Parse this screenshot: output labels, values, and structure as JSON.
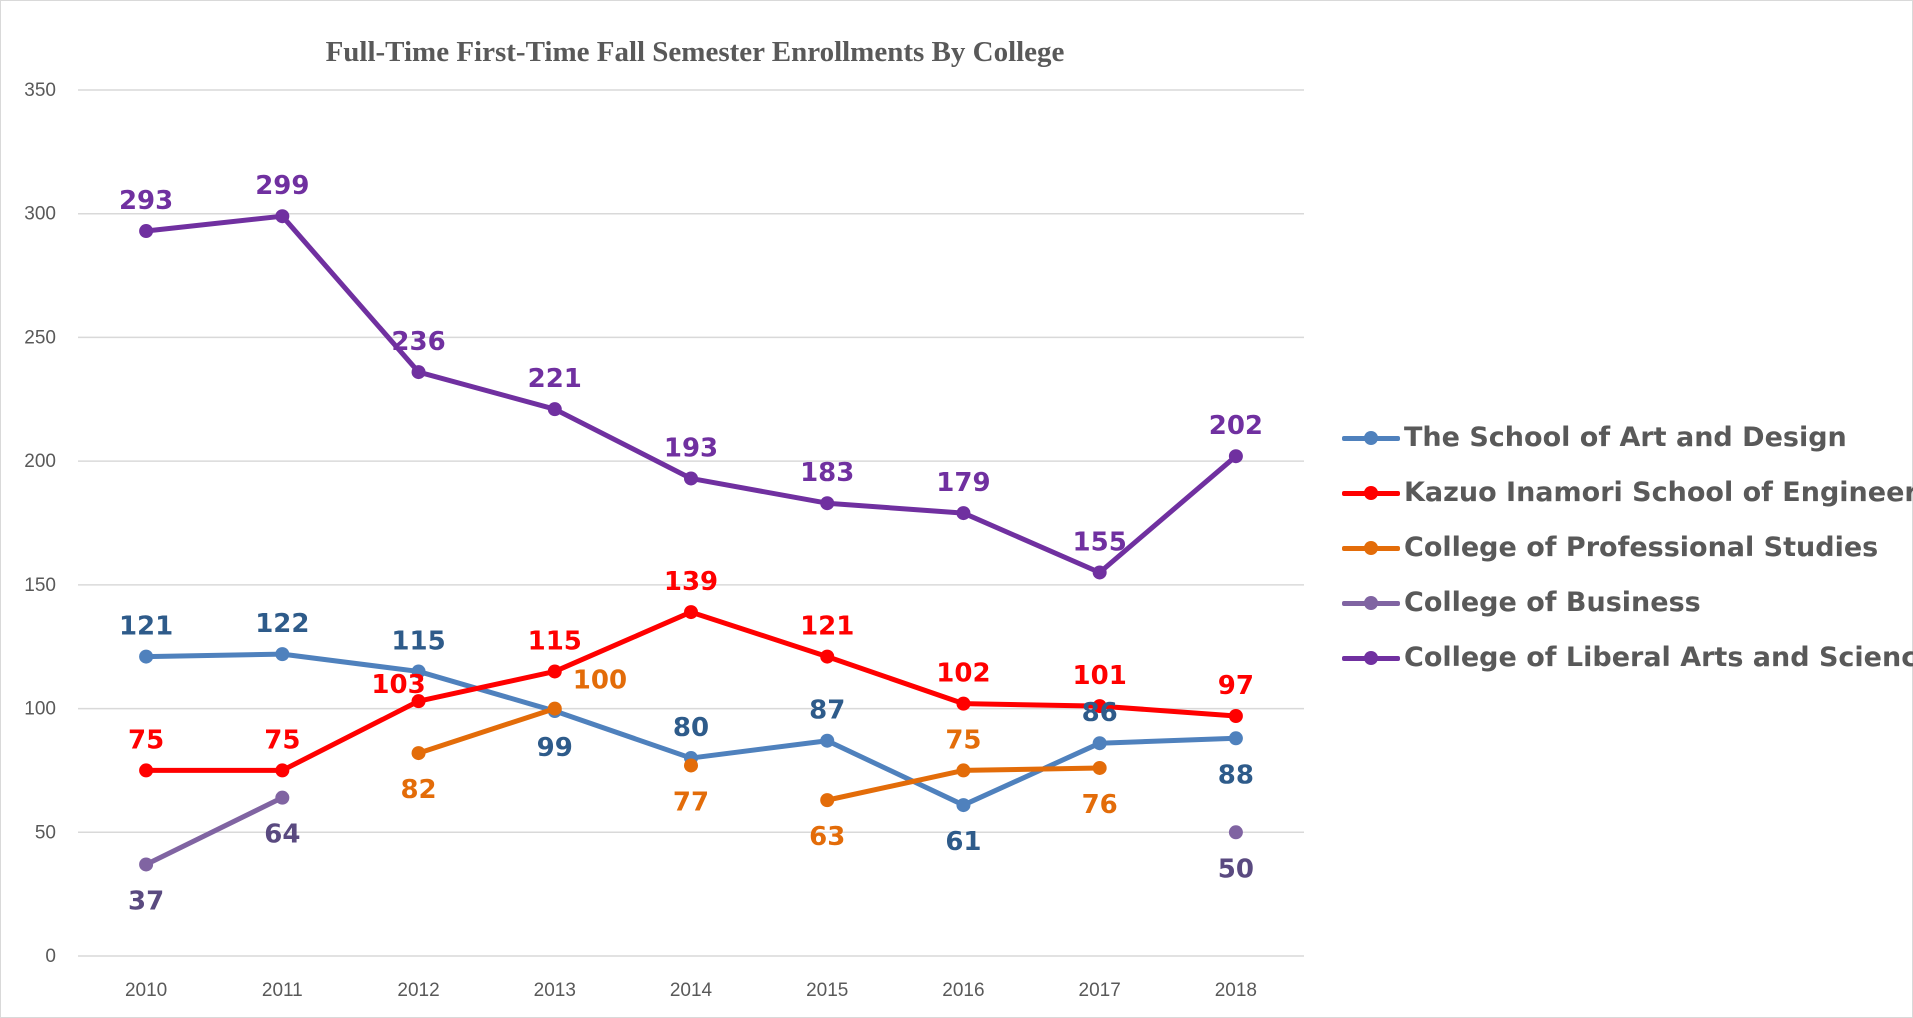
{
  "chart_data": {
    "type": "line",
    "title": "Full-Time First-Time Fall Semester Enrollments By College",
    "xlabel": "",
    "ylabel": "",
    "ylim": [
      0,
      350
    ],
    "yticks": [
      0,
      50,
      100,
      150,
      200,
      250,
      300,
      350
    ],
    "grid": true,
    "legend_position": "right",
    "categories": [
      "2010",
      "2011",
      "2012",
      "2013",
      "2014",
      "2015",
      "2016",
      "2017",
      "2018"
    ],
    "series": [
      {
        "name": "The School of Art and Design",
        "color": "#4f81bd",
        "label_color": "#2e5b8a",
        "values": [
          121,
          122,
          115,
          99,
          80,
          87,
          61,
          86,
          88
        ],
        "label_pos": [
          "above",
          "above",
          "above",
          "below",
          "above",
          "above",
          "below",
          "above",
          "below"
        ]
      },
      {
        "name": "Kazuo Inamori School of Engineering",
        "color": "#ff0000",
        "label_color": "#ff0000",
        "values": [
          75,
          75,
          103,
          115,
          139,
          121,
          102,
          101,
          97
        ],
        "label_pos": [
          "above",
          "above",
          "aboveleft",
          "above",
          "above",
          "above",
          "above",
          "above",
          "above"
        ]
      },
      {
        "name": "College of Professional Studies",
        "color": "#e36c09",
        "label_color": "#e36c09",
        "values": [
          null,
          null,
          82,
          100,
          null,
          63,
          75,
          76,
          null
        ],
        "label_pos": [
          "",
          "",
          "below",
          "right",
          "",
          "below",
          "above",
          "below",
          ""
        ]
      },
      {
        "name": "College of Business",
        "color": "#8064a2",
        "label_color": "#5a4a80",
        "values": [
          37,
          64,
          null,
          null,
          null,
          null,
          null,
          null,
          50
        ],
        "label_pos": [
          "below",
          "below",
          "",
          "",
          "",
          "",
          "",
          "",
          "below"
        ]
      },
      {
        "name": "College of Liberal Arts and Sciences",
        "color": "#7030a0",
        "label_color": "#7030a0",
        "values": [
          293,
          299,
          236,
          221,
          193,
          183,
          179,
          155,
          202
        ],
        "label_pos": [
          "above",
          "above",
          "above",
          "above",
          "above",
          "above",
          "above",
          "above",
          "above"
        ]
      }
    ],
    "extra_points": [
      {
        "series": "College of Professional Studies",
        "category": "2014",
        "value": 77,
        "label_pos": "below"
      }
    ]
  }
}
